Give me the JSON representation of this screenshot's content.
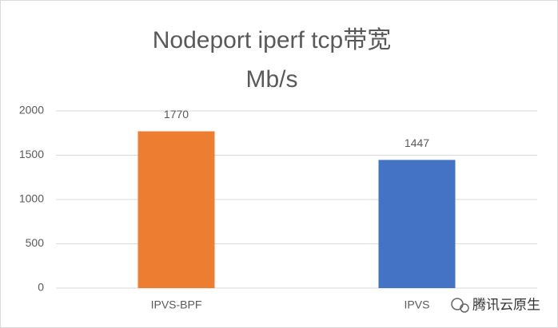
{
  "chart_data": {
    "type": "bar",
    "title": "Nodeport iperf tcp带宽",
    "subtitle": "Mb/s",
    "categories": [
      "IPVS-BPF",
      "IPVS"
    ],
    "values": [
      1770,
      1447
    ],
    "colors": [
      "#ed7d31",
      "#4472c4"
    ],
    "ylim": [
      0,
      2000
    ],
    "yticks": [
      0,
      500,
      1000,
      1500,
      2000
    ],
    "grid": true,
    "watermark": "腾讯云原生"
  }
}
